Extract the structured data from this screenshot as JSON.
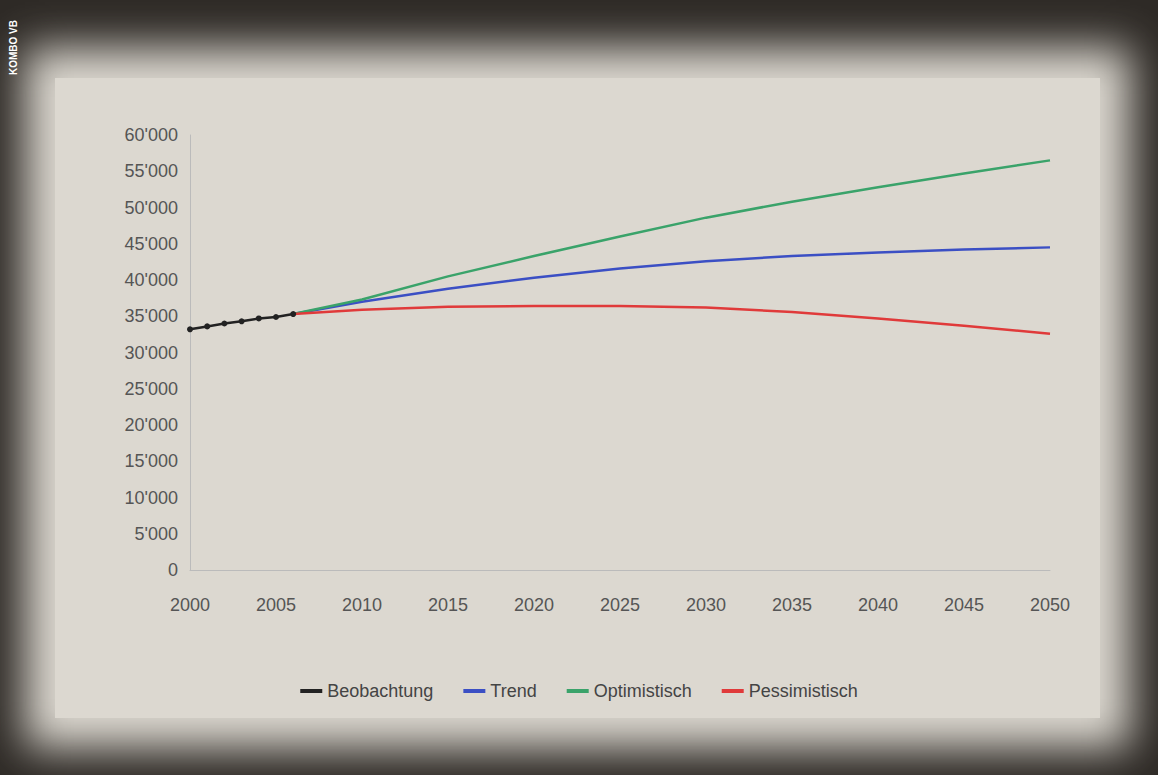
{
  "chart_data": {
    "type": "line",
    "credit": "KOMBO VB",
    "x": [
      2000,
      2001,
      2002,
      2003,
      2004,
      2005,
      2006,
      2010,
      2015,
      2020,
      2025,
      2030,
      2035,
      2040,
      2045,
      2050
    ],
    "series": [
      {
        "name": "Beobachtung",
        "color": "#222222",
        "marker": "circle",
        "values": [
          33200,
          33600,
          34000,
          34300,
          34700,
          34900,
          35300,
          null,
          null,
          null,
          null,
          null,
          null,
          null,
          null,
          null
        ]
      },
      {
        "name": "Trend",
        "color": "#3b4fc4",
        "marker": "none",
        "values": [
          null,
          null,
          null,
          null,
          null,
          null,
          35300,
          37000,
          38800,
          40300,
          41600,
          42600,
          43300,
          43800,
          44200,
          44500
        ]
      },
      {
        "name": "Optimistisch",
        "color": "#3aa36a",
        "marker": "none",
        "values": [
          null,
          null,
          null,
          null,
          null,
          null,
          35300,
          37300,
          40500,
          43300,
          46000,
          48600,
          50800,
          52800,
          54700,
          56500
        ]
      },
      {
        "name": "Pessimistisch",
        "color": "#e03a3a",
        "marker": "none",
        "values": [
          null,
          null,
          null,
          null,
          null,
          null,
          35300,
          35900,
          36300,
          36400,
          36400,
          36200,
          35600,
          34700,
          33700,
          32600
        ]
      }
    ],
    "xlim": [
      2000,
      2050
    ],
    "xticks": [
      2000,
      2005,
      2010,
      2015,
      2020,
      2025,
      2030,
      2035,
      2040,
      2045,
      2050
    ],
    "ylim": [
      0,
      60000
    ],
    "yticks": [
      0,
      {
        "value": 5000,
        "label": "5'000"
      },
      {
        "value": 10000,
        "label": "10'000"
      },
      {
        "value": 15000,
        "label": "15'000"
      },
      {
        "value": 20000,
        "label": "20'000"
      },
      {
        "value": 25000,
        "label": "25'000"
      },
      {
        "value": 30000,
        "label": "30'000"
      },
      {
        "value": 35000,
        "label": "35'000"
      },
      {
        "value": 40000,
        "label": "40'000"
      },
      {
        "value": 45000,
        "label": "45'000"
      },
      {
        "value": 50000,
        "label": "50'000"
      },
      {
        "value": 55000,
        "label": "55'000"
      },
      {
        "value": 60000,
        "label": "60'000"
      }
    ],
    "grid": false,
    "legend": "bottom"
  }
}
